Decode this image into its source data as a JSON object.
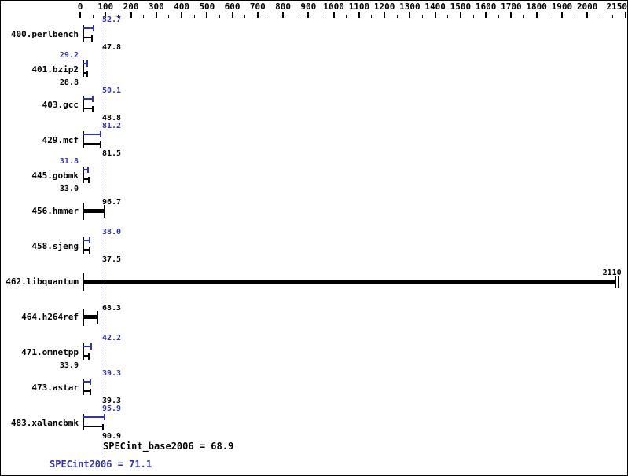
{
  "chart_data": {
    "type": "bar",
    "orientation": "horizontal",
    "axis": {
      "position": "top",
      "min": 0,
      "max": 2150,
      "major_tick_step": 100,
      "minor_tick_step": 50,
      "tick_labels": [
        "0",
        "100",
        "200",
        "300",
        "400",
        "500",
        "600",
        "700",
        "800",
        "900",
        "1000",
        "1100",
        "1200",
        "1300",
        "1400",
        "1500",
        "1600",
        "1700",
        "1800",
        "1900",
        "2000",
        "2150"
      ]
    },
    "colors": {
      "peak_bar": "#3232b4",
      "base_bar": "#000000",
      "reference_line": "#3232b4",
      "text": "#000000"
    },
    "benchmarks": [
      {
        "name": "400.perlbench",
        "peak": {
          "value": 52.7,
          "label": "52.7",
          "label_side": "right"
        },
        "base": {
          "value": 47.8,
          "label": "47.8",
          "label_side": "right"
        }
      },
      {
        "name": "401.bzip2",
        "peak": {
          "value": 29.2,
          "label": "29.2",
          "label_side": "left"
        },
        "base": {
          "value": 28.8,
          "label": "28.8",
          "label_side": "left"
        }
      },
      {
        "name": "403.gcc",
        "peak": {
          "value": 50.1,
          "label": "50.1",
          "label_side": "right"
        },
        "base": {
          "value": 48.8,
          "label": "48.8",
          "label_side": "right"
        }
      },
      {
        "name": "429.mcf",
        "peak": {
          "value": 81.2,
          "label": "81.2",
          "label_side": "right"
        },
        "base": {
          "value": 81.5,
          "label": "81.5",
          "label_side": "right"
        }
      },
      {
        "name": "445.gobmk",
        "peak": {
          "value": 31.8,
          "label": "31.8",
          "label_side": "left"
        },
        "base": {
          "value": 33.0,
          "label": "33.0",
          "label_side": "left"
        }
      },
      {
        "name": "456.hmmer",
        "single": true,
        "base": {
          "value": 96.7,
          "label": "96.7",
          "label_side": "right"
        }
      },
      {
        "name": "458.sjeng",
        "peak": {
          "value": 38.0,
          "label": "38.0",
          "label_side": "right"
        },
        "base": {
          "value": 37.5,
          "label": "37.5",
          "label_side": "right"
        }
      },
      {
        "name": "462.libquantum",
        "single": true,
        "double_end_tick": true,
        "base": {
          "value": 2110,
          "label": "2110",
          "label_side": "end"
        }
      },
      {
        "name": "464.h264ref",
        "single": true,
        "base": {
          "value": 68.3,
          "label": "68.3",
          "label_side": "right"
        }
      },
      {
        "name": "471.omnetpp",
        "peak": {
          "value": 42.2,
          "label": "42.2",
          "label_side": "right"
        },
        "base": {
          "value": 33.9,
          "label": "33.9",
          "label_side": "left"
        }
      },
      {
        "name": "473.astar",
        "peak": {
          "value": 39.3,
          "label": "39.3",
          "label_side": "right"
        },
        "base": {
          "value": 39.3,
          "label": "39.3",
          "label_side": "right"
        }
      },
      {
        "name": "483.xalancbmk",
        "peak": {
          "value": 95.9,
          "label": "95.9",
          "label_side": "right"
        },
        "base": {
          "value": 90.9,
          "label": "90.9",
          "label_side": "right"
        }
      }
    ],
    "summary": {
      "base": "SPECint_base2006 = 68.9",
      "peak": "SPECint2006 = 71.1"
    }
  }
}
